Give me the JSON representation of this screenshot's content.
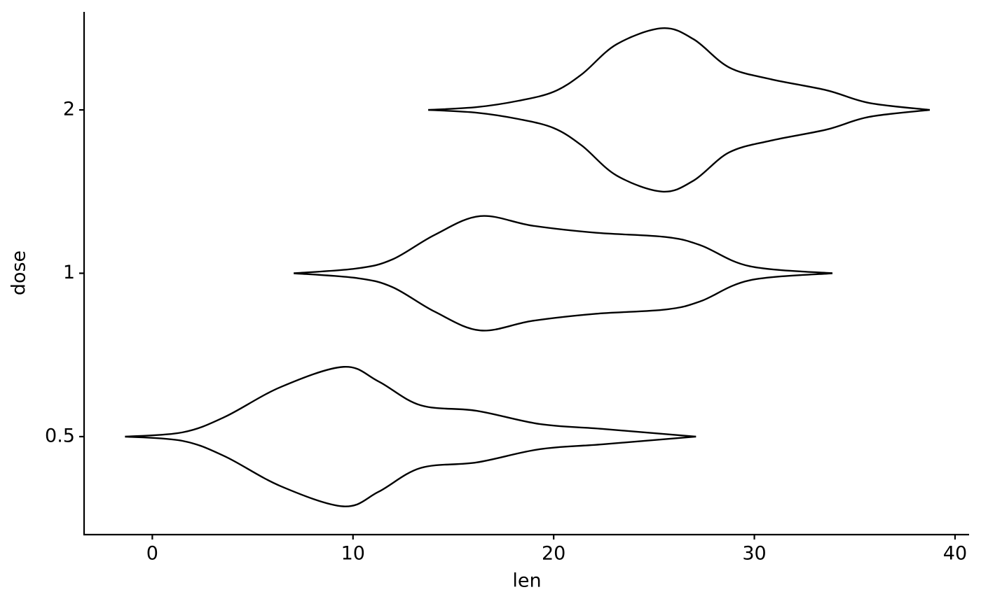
{
  "chart_data": {
    "type": "violin",
    "orientation": "horizontal",
    "x_label": "len",
    "y_label": "dose",
    "categories": [
      "0.5",
      "1",
      "2"
    ],
    "color": "#000000",
    "xlim": [
      -3.4,
      40.7
    ],
    "xticks": [
      0,
      10,
      20,
      30,
      40
    ],
    "groups": [
      {
        "x": [
          -1.36,
          1.5,
          3.6,
          6.39,
          9.53,
          11.27,
          13.37,
          16.16,
          19.3,
          22.44,
          27.09
        ],
        "half_width": [
          0,
          0.026,
          0.12,
          0.303,
          0.427,
          0.338,
          0.192,
          0.158,
          0.077,
          0.047,
          0
        ]
      },
      {
        "x": [
          7.05,
          10.23,
          11.97,
          14.07,
          16.34,
          18.95,
          22.09,
          25.58,
          27.33,
          29.77,
          33.89
        ],
        "half_width": [
          0,
          0.03,
          0.085,
          0.235,
          0.35,
          0.291,
          0.248,
          0.222,
          0.171,
          0.043,
          0
        ]
      },
      {
        "x": [
          13.75,
          16.16,
          18.25,
          20.0,
          21.4,
          23.14,
          25.41,
          26.98,
          28.73,
          30.82,
          33.61,
          35.71,
          38.74
        ],
        "half_width": [
          0,
          0.017,
          0.056,
          0.111,
          0.218,
          0.402,
          0.5,
          0.432,
          0.261,
          0.188,
          0.12,
          0.043,
          0
        ]
      }
    ]
  }
}
